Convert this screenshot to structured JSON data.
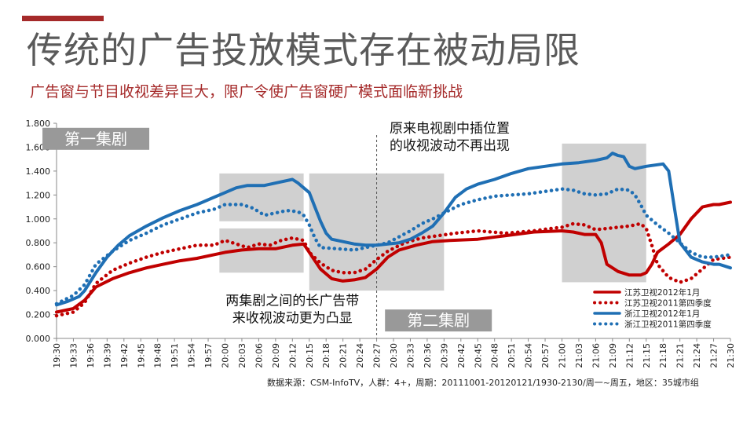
{
  "header": {
    "title": "传统的广告投放模式存在被动局限",
    "subtitle": "广告窗与节目收视差异巨大，限广令使广告窗硬广模式面临新挑战"
  },
  "footer": {
    "source": "数据来源：CSM-InfoTV，人群：4+，周期：20111001-20120121/1930-2130/周一~周五，地区：35城市组"
  },
  "colors": {
    "accent": "#a52a2a",
    "jiangsu": "#c00000",
    "zhejiang": "#1f6fb4",
    "highlight_box": "#c8c8c8",
    "label_box": "#999999"
  },
  "chart_data": {
    "type": "line",
    "ylim": [
      0,
      1.8
    ],
    "yticks": [
      "0.000",
      "0.200",
      "0.400",
      "0.600",
      "0.800",
      "1.000",
      "1.200",
      "1.400",
      "1.600",
      "1.800"
    ],
    "x_ticks": [
      "19:30",
      "19:33",
      "19:36",
      "19:39",
      "19:42",
      "19:45",
      "19:48",
      "19:51",
      "19:54",
      "19:57",
      "20:00",
      "20:03",
      "20:06",
      "20:09",
      "20:12",
      "20:15",
      "20:18",
      "20:21",
      "20:24",
      "20:27",
      "20:30",
      "20:33",
      "20:36",
      "20:39",
      "20:42",
      "20:45",
      "20:48",
      "20:51",
      "20:54",
      "20:57",
      "21:00",
      "21:03",
      "21:06",
      "21:09",
      "21:12",
      "21:15",
      "21:18",
      "21:21",
      "21:24",
      "21:27",
      "21:30"
    ],
    "x_start": "19:30",
    "x_end": "21:30",
    "grid": false,
    "legend_position": "bottom-right",
    "series": [
      {
        "name": "江苏卫视2012年1月",
        "style": "solid",
        "color": "#c00000",
        "points": [
          [
            "19:30",
            0.22
          ],
          [
            "19:33",
            0.25
          ],
          [
            "19:35",
            0.32
          ],
          [
            "19:37",
            0.43
          ],
          [
            "19:40",
            0.5
          ],
          [
            "19:43",
            0.55
          ],
          [
            "19:46",
            0.59
          ],
          [
            "19:49",
            0.62
          ],
          [
            "19:52",
            0.65
          ],
          [
            "19:55",
            0.67
          ],
          [
            "19:58",
            0.7
          ],
          [
            "20:00",
            0.72
          ],
          [
            "20:03",
            0.74
          ],
          [
            "20:06",
            0.75
          ],
          [
            "20:09",
            0.75
          ],
          [
            "20:12",
            0.78
          ],
          [
            "20:14",
            0.79
          ],
          [
            "20:15",
            0.72
          ],
          [
            "20:17",
            0.58
          ],
          [
            "20:19",
            0.5
          ],
          [
            "20:21",
            0.48
          ],
          [
            "20:23",
            0.49
          ],
          [
            "20:25",
            0.51
          ],
          [
            "20:27",
            0.58
          ],
          [
            "20:29",
            0.68
          ],
          [
            "20:31",
            0.74
          ],
          [
            "20:34",
            0.78
          ],
          [
            "20:37",
            0.81
          ],
          [
            "20:40",
            0.82
          ],
          [
            "20:45",
            0.83
          ],
          [
            "20:50",
            0.86
          ],
          [
            "20:55",
            0.89
          ],
          [
            "21:00",
            0.9
          ],
          [
            "21:02",
            0.89
          ],
          [
            "21:04",
            0.87
          ],
          [
            "21:06",
            0.87
          ],
          [
            "21:07",
            0.8
          ],
          [
            "21:08",
            0.62
          ],
          [
            "21:10",
            0.56
          ],
          [
            "21:12",
            0.53
          ],
          [
            "21:14",
            0.53
          ],
          [
            "21:15",
            0.55
          ],
          [
            "21:16",
            0.62
          ],
          [
            "21:17",
            0.72
          ],
          [
            "21:19",
            0.79
          ],
          [
            "21:21",
            0.87
          ],
          [
            "21:23",
            1.0
          ],
          [
            "21:25",
            1.1
          ],
          [
            "21:27",
            1.12
          ],
          [
            "21:28",
            1.12
          ],
          [
            "21:30",
            1.14
          ]
        ]
      },
      {
        "name": "江苏卫视2011第四季度",
        "style": "dotted",
        "color": "#c00000",
        "points": [
          [
            "19:30",
            0.19
          ],
          [
            "19:33",
            0.22
          ],
          [
            "19:35",
            0.3
          ],
          [
            "19:37",
            0.46
          ],
          [
            "19:40",
            0.57
          ],
          [
            "19:43",
            0.63
          ],
          [
            "19:46",
            0.68
          ],
          [
            "19:49",
            0.72
          ],
          [
            "19:52",
            0.75
          ],
          [
            "19:55",
            0.78
          ],
          [
            "19:58",
            0.78
          ],
          [
            "20:00",
            0.82
          ],
          [
            "20:02",
            0.79
          ],
          [
            "20:04",
            0.76
          ],
          [
            "20:06",
            0.79
          ],
          [
            "20:08",
            0.78
          ],
          [
            "20:10",
            0.82
          ],
          [
            "20:12",
            0.84
          ],
          [
            "20:14",
            0.82
          ],
          [
            "20:15",
            0.72
          ],
          [
            "20:17",
            0.63
          ],
          [
            "20:19",
            0.57
          ],
          [
            "20:21",
            0.55
          ],
          [
            "20:23",
            0.55
          ],
          [
            "20:25",
            0.58
          ],
          [
            "20:27",
            0.66
          ],
          [
            "20:29",
            0.73
          ],
          [
            "20:32",
            0.8
          ],
          [
            "20:35",
            0.84
          ],
          [
            "20:38",
            0.86
          ],
          [
            "20:41",
            0.88
          ],
          [
            "20:45",
            0.9
          ],
          [
            "20:50",
            0.88
          ],
          [
            "20:55",
            0.9
          ],
          [
            "20:58",
            0.92
          ],
          [
            "21:00",
            0.93
          ],
          [
            "21:02",
            0.96
          ],
          [
            "21:04",
            0.95
          ],
          [
            "21:06",
            0.91
          ],
          [
            "21:08",
            0.92
          ],
          [
            "21:10",
            0.93
          ],
          [
            "21:12",
            0.94
          ],
          [
            "21:14",
            0.96
          ],
          [
            "21:15",
            0.92
          ],
          [
            "21:16",
            0.78
          ],
          [
            "21:17",
            0.62
          ],
          [
            "21:19",
            0.51
          ],
          [
            "21:21",
            0.47
          ],
          [
            "21:23",
            0.5
          ],
          [
            "21:25",
            0.58
          ],
          [
            "21:27",
            0.66
          ],
          [
            "21:30",
            0.68
          ]
        ]
      },
      {
        "name": "浙江卫视2012年1月",
        "style": "solid",
        "color": "#1f6fb4",
        "points": [
          [
            "19:30",
            0.28
          ],
          [
            "19:32",
            0.31
          ],
          [
            "19:34",
            0.35
          ],
          [
            "19:35",
            0.4
          ],
          [
            "19:37",
            0.55
          ],
          [
            "19:39",
            0.68
          ],
          [
            "19:41",
            0.78
          ],
          [
            "19:43",
            0.86
          ],
          [
            "19:46",
            0.94
          ],
          [
            "19:49",
            1.01
          ],
          [
            "19:52",
            1.07
          ],
          [
            "19:55",
            1.12
          ],
          [
            "19:58",
            1.18
          ],
          [
            "20:00",
            1.22
          ],
          [
            "20:02",
            1.26
          ],
          [
            "20:04",
            1.28
          ],
          [
            "20:07",
            1.28
          ],
          [
            "20:10",
            1.31
          ],
          [
            "20:12",
            1.33
          ],
          [
            "20:13",
            1.3
          ],
          [
            "20:14",
            1.26
          ],
          [
            "20:15",
            1.22
          ],
          [
            "20:16",
            1.1
          ],
          [
            "20:17",
            0.98
          ],
          [
            "20:18",
            0.88
          ],
          [
            "20:19",
            0.83
          ],
          [
            "20:21",
            0.81
          ],
          [
            "20:23",
            0.79
          ],
          [
            "20:25",
            0.78
          ],
          [
            "20:27",
            0.78
          ],
          [
            "20:29",
            0.79
          ],
          [
            "20:31",
            0.8
          ],
          [
            "20:33",
            0.83
          ],
          [
            "20:35",
            0.88
          ],
          [
            "20:37",
            0.94
          ],
          [
            "20:39",
            1.05
          ],
          [
            "20:41",
            1.18
          ],
          [
            "20:43",
            1.25
          ],
          [
            "20:45",
            1.29
          ],
          [
            "20:48",
            1.33
          ],
          [
            "20:51",
            1.38
          ],
          [
            "20:54",
            1.42
          ],
          [
            "20:57",
            1.44
          ],
          [
            "21:00",
            1.46
          ],
          [
            "21:03",
            1.47
          ],
          [
            "21:06",
            1.49
          ],
          [
            "21:08",
            1.51
          ],
          [
            "21:09",
            1.55
          ],
          [
            "21:10",
            1.53
          ],
          [
            "21:11",
            1.52
          ],
          [
            "21:12",
            1.44
          ],
          [
            "21:13",
            1.42
          ],
          [
            "21:15",
            1.44
          ],
          [
            "21:18",
            1.46
          ],
          [
            "21:19",
            1.4
          ],
          [
            "21:20",
            1.1
          ],
          [
            "21:21",
            0.8
          ],
          [
            "21:23",
            0.68
          ],
          [
            "21:25",
            0.64
          ],
          [
            "21:27",
            0.62
          ],
          [
            "21:28",
            0.62
          ],
          [
            "21:30",
            0.59
          ]
        ]
      },
      {
        "name": "浙江卫视2011第四季度",
        "style": "dotted",
        "color": "#1f6fb4",
        "points": [
          [
            "19:30",
            0.29
          ],
          [
            "19:33",
            0.36
          ],
          [
            "19:35",
            0.45
          ],
          [
            "19:37",
            0.62
          ],
          [
            "19:40",
            0.73
          ],
          [
            "19:43",
            0.82
          ],
          [
            "19:46",
            0.88
          ],
          [
            "19:49",
            0.95
          ],
          [
            "19:52",
            1.0
          ],
          [
            "19:55",
            1.05
          ],
          [
            "19:58",
            1.08
          ],
          [
            "20:00",
            1.12
          ],
          [
            "20:03",
            1.12
          ],
          [
            "20:05",
            1.09
          ],
          [
            "20:07",
            1.03
          ],
          [
            "20:09",
            1.05
          ],
          [
            "20:11",
            1.07
          ],
          [
            "20:13",
            1.06
          ],
          [
            "20:14",
            1.03
          ],
          [
            "20:15",
            0.95
          ],
          [
            "20:16",
            0.84
          ],
          [
            "20:17",
            0.76
          ],
          [
            "20:20",
            0.75
          ],
          [
            "20:23",
            0.74
          ],
          [
            "20:26",
            0.77
          ],
          [
            "20:29",
            0.8
          ],
          [
            "20:31",
            0.85
          ],
          [
            "20:33",
            0.9
          ],
          [
            "20:35",
            0.96
          ],
          [
            "20:37",
            1.0
          ],
          [
            "20:39",
            1.05
          ],
          [
            "20:42",
            1.12
          ],
          [
            "20:45",
            1.16
          ],
          [
            "20:48",
            1.19
          ],
          [
            "20:51",
            1.2
          ],
          [
            "20:54",
            1.21
          ],
          [
            "20:57",
            1.23
          ],
          [
            "21:00",
            1.25
          ],
          [
            "21:02",
            1.24
          ],
          [
            "21:04",
            1.21
          ],
          [
            "21:06",
            1.2
          ],
          [
            "21:08",
            1.21
          ],
          [
            "21:10",
            1.25
          ],
          [
            "21:12",
            1.24
          ],
          [
            "21:13",
            1.2
          ],
          [
            "21:14",
            1.12
          ],
          [
            "21:15",
            1.03
          ],
          [
            "21:17",
            0.95
          ],
          [
            "21:19",
            0.88
          ],
          [
            "21:21",
            0.8
          ],
          [
            "21:23",
            0.72
          ],
          [
            "21:25",
            0.68
          ],
          [
            "21:27",
            0.68
          ],
          [
            "21:30",
            0.7
          ]
        ]
      }
    ],
    "highlight_boxes": [
      {
        "from": "19:59",
        "to": "20:14",
        "y_from": 0.55,
        "y_to": 0.92
      },
      {
        "from": "19:59",
        "to": "20:14",
        "y_from": 0.98,
        "y_to": 1.38
      },
      {
        "from": "20:15",
        "to": "20:39",
        "y_from": 0.4,
        "y_to": 1.38
      },
      {
        "from": "21:00",
        "to": "21:15",
        "y_from": 0.47,
        "y_to": 1.63
      }
    ],
    "divider_at": "20:27",
    "label_boxes": [
      {
        "text": "第一集剧",
        "at": "19:37",
        "y": 1.67
      },
      {
        "text": "第二集剧",
        "at": "20:38",
        "y": 0.15
      }
    ],
    "annotations": [
      {
        "lines": [
          "原来电视剧中插位置",
          "的收视波动不再出现"
        ],
        "at": "20:40",
        "y": 1.72
      },
      {
        "lines": [
          "两集剧之间的长广告带",
          "来收视波动更为凸显"
        ],
        "at": "20:12",
        "y": 0.28
      }
    ]
  }
}
